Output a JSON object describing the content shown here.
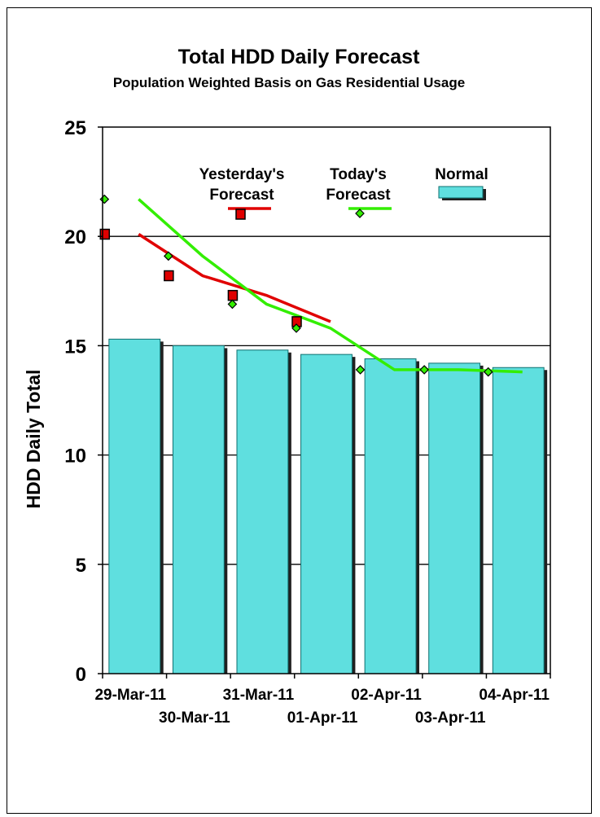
{
  "chart_data": {
    "type": "bar",
    "title": "Total HDD Daily Forecast",
    "subtitle": "Population Weighted Basis on Gas Residential Usage",
    "ylabel": "HDD Daily Total",
    "xlabel": "",
    "ylim": [
      0,
      25
    ],
    "yticks": [
      "0",
      "5",
      "10",
      "15",
      "20",
      "25"
    ],
    "gridlines": true,
    "categories": [
      "29-Mar-11",
      "30-Mar-11",
      "31-Mar-11",
      "01-Apr-11",
      "02-Apr-11",
      "03-Apr-11",
      "04-Apr-11"
    ],
    "series": [
      {
        "name": "Normal",
        "kind": "bar",
        "color": "#5fdfdf",
        "values": [
          15.3,
          15.0,
          14.8,
          14.6,
          14.4,
          14.2,
          14.0
        ]
      },
      {
        "name": "Yesterday's Forecast",
        "kind": "line",
        "color": "#e00000",
        "marker": "square",
        "values": [
          20.1,
          18.2,
          17.3,
          16.1,
          null,
          null,
          null
        ]
      },
      {
        "name": "Today's Forecast",
        "kind": "line",
        "color": "#33ee00",
        "marker": "diamond",
        "values": [
          21.7,
          19.1,
          16.9,
          15.8,
          13.9,
          13.9,
          13.8
        ]
      }
    ],
    "legend": {
      "placement": "top",
      "items": [
        "Yesterday's",
        "Forecast",
        "Today's",
        "Forecast",
        "Normal"
      ]
    }
  }
}
